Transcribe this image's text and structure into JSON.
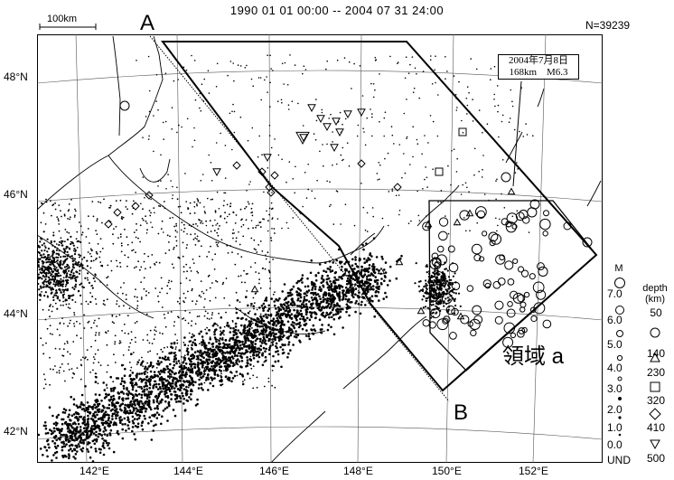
{
  "header": {
    "title": "1990 01 01 00:00 -- 2004 07 31 24:00",
    "count": "N=39239"
  },
  "scale_bar": {
    "label": "100km"
  },
  "profile": {
    "start_label": "A",
    "end_label": "B"
  },
  "region_label": "領域 a",
  "callout": {
    "line1": "2004年7月8日",
    "line2": "168km　M6.3"
  },
  "latitude_labels": [
    "48°N",
    "46°N",
    "44°N",
    "42°N"
  ],
  "longitude_labels": [
    "142°E",
    "144°E",
    "146°E",
    "148°E",
    "150°E",
    "152°E"
  ],
  "legend": {
    "magnitude_title": "M",
    "magnitudes": [
      "7.0",
      "6.0",
      "5.0",
      "4.0",
      "3.0",
      "2.0",
      "1.0",
      "0.0",
      "UND"
    ],
    "depth_title": "depth",
    "depth_unit": "(km)",
    "depths": [
      "50",
      "140",
      "230",
      "320",
      "410",
      "500"
    ]
  },
  "colors": {
    "ink": "#000000",
    "background": "#ffffff"
  }
}
